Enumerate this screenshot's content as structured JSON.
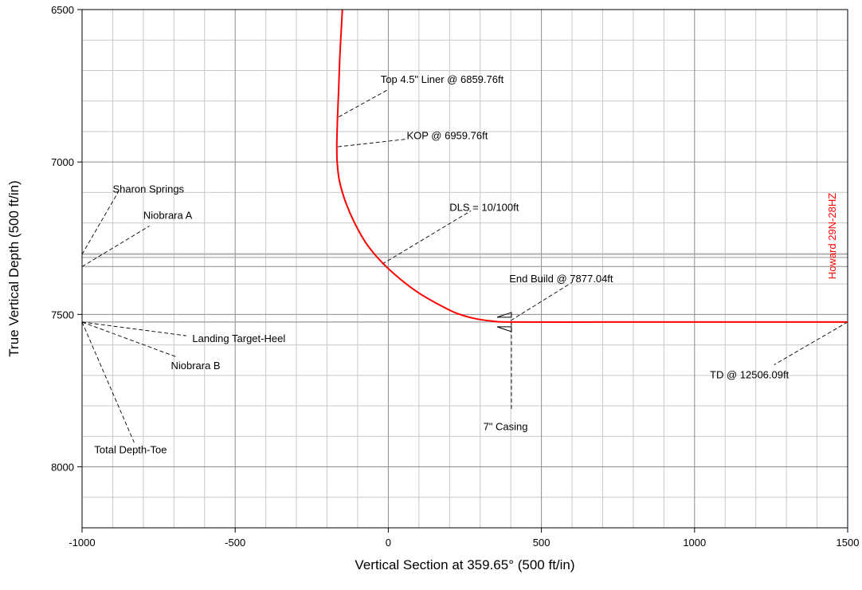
{
  "chart_data": {
    "type": "line",
    "xlabel": "Vertical Section at 359.65° (500 ft/in)",
    "ylabel": "True Vertical Depth (500 ft/in)",
    "xlim": [
      -1000,
      1500
    ],
    "ylim": [
      8200,
      6500
    ],
    "y_inverted": true,
    "x_ticks": [
      -1000,
      -500,
      0,
      500,
      1000,
      1500
    ],
    "x_tick_labels": [
      "-1000",
      "-500",
      "0",
      "500",
      "1000",
      "1500"
    ],
    "y_ticks": [
      6500,
      7000,
      7500,
      8000
    ],
    "y_tick_labels": [
      "6500",
      "7000",
      "7500",
      "8000"
    ],
    "major_grid_x_step": 500,
    "minor_grid_x_step": 100,
    "major_grid_y_step": 500,
    "minor_grid_y_step": 100,
    "grid": true,
    "well_color": "#ff0000",
    "series": [
      {
        "name": "Howard 29N-28HZ",
        "color": "#ff0000",
        "x": [
          -150,
          -158,
          -162,
          -166,
          -168,
          -168,
          -167,
          -160,
          -140,
          -110,
          -70,
          -20,
          40,
          100,
          160,
          220,
          280,
          340,
          400,
          700,
          1000,
          1300,
          1500
        ],
        "y": [
          6500,
          6650,
          6760,
          6860,
          6930,
          6960,
          7000,
          7060,
          7130,
          7200,
          7270,
          7330,
          7385,
          7430,
          7465,
          7495,
          7513,
          7522,
          7525,
          7525,
          7525,
          7525,
          7525
        ]
      }
    ],
    "formation_lines": [
      {
        "y": 7303,
        "color": "#aaaaaa"
      },
      {
        "y": 7313,
        "color": "#aaaaaa"
      },
      {
        "y": 7343,
        "color": "#999999"
      },
      {
        "y": 7525,
        "color": "#999999"
      }
    ],
    "annotations": [
      {
        "name": "top-liner",
        "text": "Top 4.5\" Liner @ 6859.76ft",
        "point": [
          -162,
          6852
        ],
        "label": [
          -5,
          6765
        ],
        "text_pos": [
          -25,
          6740
        ]
      },
      {
        "name": "kop",
        "text": "KOP @ 6959.76ft",
        "point": [
          -165,
          6950
        ],
        "label": [
          60,
          6925
        ],
        "text_pos": [
          60,
          6925
        ]
      },
      {
        "name": "dls",
        "text": "DLS = 10/100ft",
        "point": [
          -20,
          7335
        ],
        "label": [
          270,
          7160
        ],
        "text_pos": [
          200,
          7160
        ]
      },
      {
        "name": "end-build",
        "text": "End Build @ 7877.04ft",
        "point": [
          400,
          7520
        ],
        "label": [
          600,
          7395
        ],
        "text_pos": [
          395,
          7395
        ]
      },
      {
        "name": "seven-casing",
        "text": "7\" Casing",
        "point": [
          402,
          7525
        ],
        "label": [
          402,
          7810
        ],
        "text_pos": [
          310,
          7880
        ]
      },
      {
        "name": "td",
        "text": "TD @ 12506.09ft",
        "point": [
          1500,
          7525
        ],
        "label": [
          1260,
          7665
        ],
        "text_pos": [
          1050,
          7710
        ]
      },
      {
        "name": "sharon-springs",
        "text": "Sharon Springs",
        "point": [
          -1000,
          7303
        ],
        "label": [
          -880,
          7095
        ],
        "text_pos": [
          -900,
          7100
        ]
      },
      {
        "name": "niobrara-a",
        "text": "Niobrara A",
        "point": [
          -1000,
          7343
        ],
        "label": [
          -780,
          7210
        ],
        "text_pos": [
          -800,
          7187
        ]
      },
      {
        "name": "landing-target-heel",
        "text": "Landing Target-Heel",
        "point": [
          -1000,
          7525
        ],
        "label": [
          -660,
          7570
        ],
        "text_pos": [
          -640,
          7590
        ]
      },
      {
        "name": "niobrara-b",
        "text": "Niobrara B",
        "point": [
          -1000,
          7525
        ],
        "label": [
          -690,
          7640
        ],
        "text_pos": [
          -710,
          7680
        ]
      },
      {
        "name": "total-depth-toe",
        "text": "Total Depth-Toe",
        "point": [
          -1000,
          7525
        ],
        "label": [
          -830,
          7920
        ],
        "text_pos": [
          -960,
          7955
        ]
      }
    ],
    "casing_symbol_at": [
      402,
      7525
    ]
  }
}
